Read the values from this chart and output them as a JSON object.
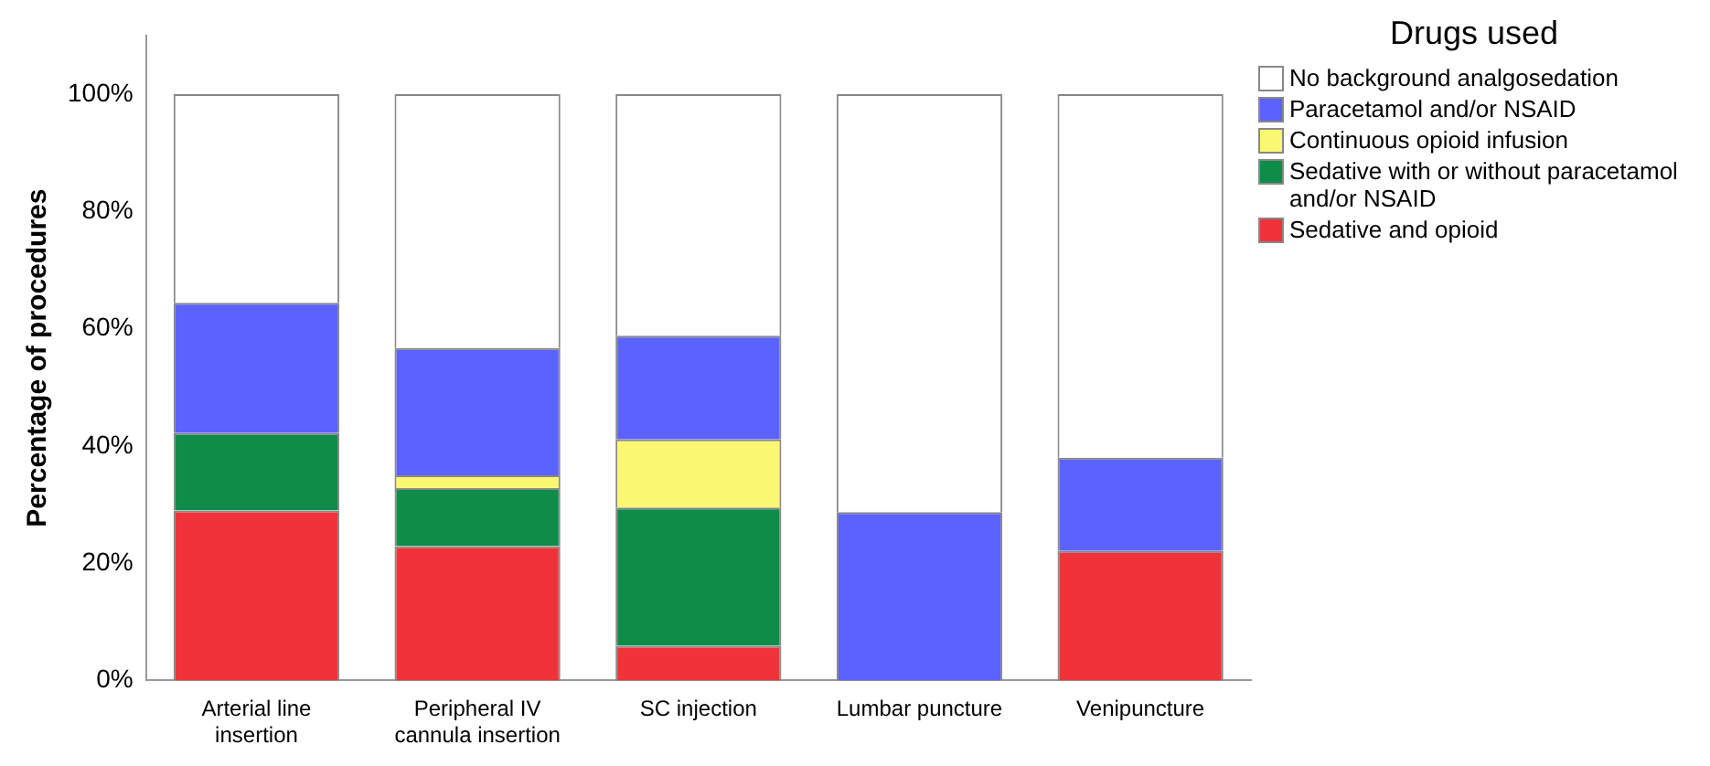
{
  "chart_data": {
    "type": "bar",
    "stacked": true,
    "ylabel": "Percentage of procedures",
    "legend_title": "Drugs used",
    "legend": "right",
    "grid": false,
    "categories": [
      "Arterial line insertion",
      "Peripheral IV cannula insertion",
      "SC injection",
      "Lumbar puncture",
      "Venipuncture"
    ],
    "ylim": [
      0,
      110
    ],
    "yticks": [
      {
        "value": 0,
        "label": "0%"
      },
      {
        "value": 20,
        "label": "20%"
      },
      {
        "value": 40,
        "label": "40%"
      },
      {
        "value": 60,
        "label": "60%"
      },
      {
        "value": 80,
        "label": "80%"
      },
      {
        "value": 100,
        "label": "100%"
      }
    ],
    "series": [
      {
        "name": "Sedative and opioid",
        "color": "#ef3338",
        "values": [
          29.0,
          22.9,
          5.9,
          0,
          22.1
        ]
      },
      {
        "name": "Sedative with or without paracetamol and/or NSAID",
        "color": "#0f8c47",
        "values": [
          13.2,
          9.9,
          23.6,
          0,
          0
        ]
      },
      {
        "name": "Continuous opioid infusion",
        "color": "#f9f870",
        "values": [
          0,
          2.2,
          11.6,
          0,
          0
        ]
      },
      {
        "name": "Paracetamol and/or NSAID",
        "color": "#5c62fe",
        "values": [
          22.2,
          21.7,
          17.7,
          28.7,
          15.9
        ]
      },
      {
        "name": "No background analgosedation",
        "color": "#ffffff",
        "values": [
          35.6,
          43.3,
          41.2,
          71.3,
          62.0
        ]
      }
    ]
  }
}
